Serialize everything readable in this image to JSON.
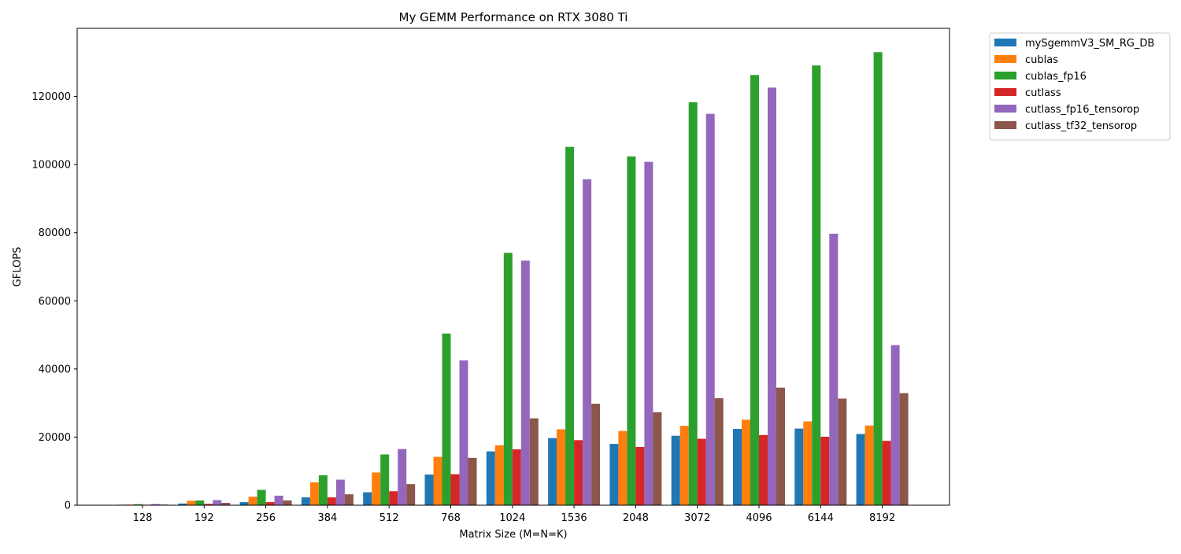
{
  "chart_data": {
    "type": "bar",
    "title": "My GEMM Performance on RTX 3080 Ti",
    "xlabel": "Matrix Size (M=N=K)",
    "ylabel": "GFLOPS",
    "ylim": [
      0,
      140000
    ],
    "yticks": [
      0,
      20000,
      40000,
      60000,
      80000,
      100000,
      120000
    ],
    "grid": false,
    "legend_position": "outside upper-right",
    "categories": [
      "128",
      "192",
      "256",
      "384",
      "512",
      "768",
      "1024",
      "1536",
      "2048",
      "3072",
      "4096",
      "6144",
      "8192"
    ],
    "series": [
      {
        "name": "mySgemmV3_SM_RG_DB",
        "color": "#1f77b4",
        "values": [
          150,
          500,
          900,
          2300,
          3800,
          9000,
          15800,
          19700,
          18000,
          20400,
          22400,
          22500,
          20900
        ]
      },
      {
        "name": "cublas",
        "color": "#ff7f0e",
        "values": [
          200,
          1300,
          2500,
          6700,
          9600,
          14200,
          17600,
          22300,
          21800,
          23300,
          25100,
          24600,
          23400
        ]
      },
      {
        "name": "cublas_fp16",
        "color": "#2ca02c",
        "values": [
          300,
          1400,
          4500,
          8800,
          14900,
          50400,
          74100,
          105200,
          102400,
          118300,
          126300,
          129100,
          133000
        ]
      },
      {
        "name": "cutlass",
        "color": "#d62728",
        "values": [
          150,
          400,
          900,
          2300,
          4100,
          9100,
          16400,
          19100,
          17100,
          19500,
          20600,
          20100,
          18900
        ]
      },
      {
        "name": "cutlass_fp16_tensorop",
        "color": "#9467bd",
        "values": [
          350,
          1500,
          2800,
          7500,
          16500,
          42500,
          71800,
          95700,
          100800,
          114900,
          122600,
          79700,
          47000
        ]
      },
      {
        "name": "cutlass_tf32_tensorop",
        "color": "#8c564b",
        "values": [
          200,
          700,
          1400,
          3200,
          6200,
          13900,
          25500,
          29800,
          27300,
          31400,
          34500,
          31300,
          32900
        ]
      }
    ]
  }
}
